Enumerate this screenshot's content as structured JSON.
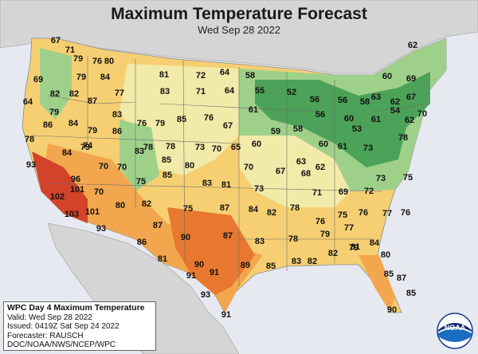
{
  "title": "Maximum Temperature Forecast",
  "subtitle": "Wed Sep 28 2022",
  "infobox": {
    "line1": "WPC Day 4 Maximum Temperature",
    "line2": "Valid: Wed Sep 28 2022",
    "line3": "Issued: 0419Z Sat Sep 24 2022",
    "line4": "Forecaster: RAUSCH",
    "line5": "DOC/NOAA/NWS/NCEP/WPC"
  },
  "logo": {
    "text": "NOAA",
    "icon": "noaa-logo"
  },
  "colors": {
    "ocean": "#e6e9ef",
    "cool_green": "#3d9a4f",
    "mild_green": "#9fd08a",
    "neutral": "#f2eaa8",
    "warm_yellow": "#f6cf72",
    "warm_orange": "#f2a64d",
    "hot_orange": "#e8782f",
    "very_hot_red": "#d2432a"
  },
  "temperatures": [
    "67",
    "71",
    "62",
    "79",
    "76",
    "80",
    "69",
    "79",
    "84",
    "82",
    "81",
    "72",
    "64",
    "58",
    "60",
    "69",
    "64",
    "82",
    "87",
    "77",
    "83",
    "71",
    "64",
    "55",
    "52",
    "56",
    "56",
    "58",
    "63",
    "62",
    "67",
    "79",
    "83",
    "76",
    "79",
    "85",
    "76",
    "67",
    "61",
    "56",
    "60",
    "61",
    "54",
    "62",
    "70",
    "78",
    "86",
    "84",
    "79",
    "86",
    "78",
    "78",
    "73",
    "70",
    "65",
    "60",
    "59",
    "58",
    "60",
    "53",
    "70",
    "74",
    "93",
    "84",
    "79",
    "83",
    "85",
    "80",
    "70",
    "67",
    "63",
    "62",
    "61",
    "73",
    "78",
    "96",
    "70",
    "75",
    "85",
    "83",
    "81",
    "73",
    "68",
    "71",
    "69",
    "72",
    "73",
    "75",
    "102",
    "101",
    "70",
    "80",
    "82",
    "75",
    "87",
    "84",
    "82",
    "78",
    "76",
    "75",
    "76",
    "77",
    "76",
    "103",
    "101",
    "93",
    "86",
    "87",
    "90",
    "87",
    "83",
    "78",
    "79",
    "77",
    "81",
    "84",
    "81",
    "91",
    "91",
    "90",
    "89",
    "85",
    "83",
    "82",
    "82",
    "79",
    "80",
    "85",
    "87",
    "93",
    "91",
    "90",
    "85"
  ]
}
